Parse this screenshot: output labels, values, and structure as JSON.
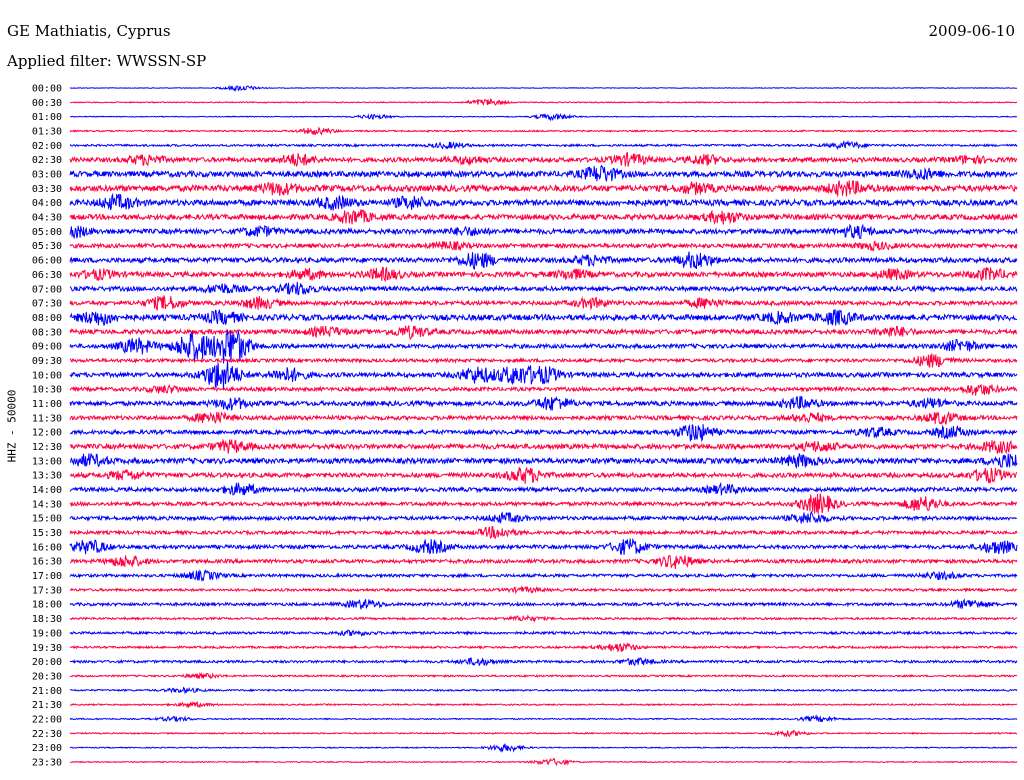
{
  "header": {
    "station": "GE Mathiatis, Cyprus",
    "filter": "Applied filter: WWSSN-SP",
    "date": "2009-06-10"
  },
  "chart_data": {
    "type": "line",
    "ylabel": "HHZ - 50000",
    "colors": {
      "odd": "#0000ff",
      "even": "#ff0040"
    },
    "trace_labels": [
      "00:00",
      "00:30",
      "01:00",
      "01:30",
      "02:00",
      "02:30",
      "03:00",
      "03:30",
      "04:00",
      "04:30",
      "05:00",
      "05:30",
      "06:00",
      "06:30",
      "07:00",
      "07:30",
      "08:00",
      "08:30",
      "09:00",
      "09:30",
      "10:00",
      "10:30",
      "11:00",
      "11:30",
      "12:00",
      "12:30",
      "13:00",
      "13:30",
      "14:00",
      "14:30",
      "15:00",
      "15:30",
      "16:00",
      "16:30",
      "17:00",
      "17:30",
      "18:00",
      "18:30",
      "19:00",
      "19:30",
      "20:00",
      "20:30",
      "21:00",
      "21:30",
      "22:00",
      "22:30",
      "23:00",
      "23:30"
    ],
    "noise_level": [
      0.3,
      0.5,
      0.4,
      0.7,
      1.0,
      2.2,
      2.8,
      3.0,
      2.8,
      2.6,
      2.4,
      2.0,
      2.4,
      2.4,
      2.2,
      2.0,
      2.8,
      2.2,
      2.0,
      1.6,
      2.2,
      1.8,
      2.2,
      2.0,
      2.0,
      2.4,
      2.6,
      2.2,
      2.0,
      1.8,
      1.8,
      1.6,
      1.8,
      1.8,
      1.4,
      1.2,
      1.4,
      1.0,
      1.2,
      1.0,
      1.2,
      0.8,
      0.8,
      0.7,
      0.6,
      0.6,
      0.5,
      0.5
    ],
    "events": [
      [
        [
          0.18,
          2.5
        ]
      ],
      [
        [
          0.44,
          3.0
        ]
      ],
      [
        [
          0.32,
          2.0
        ],
        [
          0.51,
          3.0
        ]
      ],
      [
        [
          0.26,
          3.0
        ]
      ],
      [
        [
          0.4,
          2.5
        ],
        [
          0.82,
          3.0
        ]
      ],
      [
        [
          0.24,
          5.0
        ],
        [
          0.08,
          4.0
        ],
        [
          0.42,
          3.0
        ],
        [
          0.59,
          5.0
        ],
        [
          0.67,
          4.0
        ],
        [
          0.95,
          3.0
        ]
      ],
      [
        [
          0.56,
          7.0
        ],
        [
          0.9,
          4.0
        ]
      ],
      [
        [
          0.22,
          5.0
        ],
        [
          0.66,
          4.0
        ],
        [
          0.82,
          6.0
        ]
      ],
      [
        [
          0.05,
          6.0
        ],
        [
          0.28,
          5.0
        ],
        [
          0.36,
          5.0
        ]
      ],
      [
        [
          0.3,
          6.0
        ],
        [
          0.69,
          5.0
        ]
      ],
      [
        [
          0.0,
          6.0
        ],
        [
          0.2,
          4.0
        ],
        [
          0.42,
          3.0
        ],
        [
          0.83,
          5.0
        ]
      ],
      [
        [
          0.4,
          3.0
        ],
        [
          0.85,
          3.0
        ]
      ],
      [
        [
          0.43,
          7.0
        ],
        [
          0.55,
          4.0
        ],
        [
          0.66,
          7.0
        ]
      ],
      [
        [
          0.03,
          4.0
        ],
        [
          0.25,
          4.0
        ],
        [
          0.33,
          5.0
        ],
        [
          0.53,
          4.0
        ],
        [
          0.87,
          4.0
        ],
        [
          0.97,
          5.0
        ]
      ],
      [
        [
          0.16,
          4.0
        ],
        [
          0.24,
          5.0
        ]
      ],
      [
        [
          0.1,
          6.0
        ],
        [
          0.2,
          5.0
        ],
        [
          0.55,
          4.0
        ],
        [
          0.67,
          4.0
        ]
      ],
      [
        [
          0.03,
          6.0
        ],
        [
          0.16,
          5.0
        ],
        [
          0.81,
          6.0
        ],
        [
          0.75,
          4.0
        ]
      ],
      [
        [
          0.27,
          4.0
        ],
        [
          0.36,
          5.0
        ],
        [
          0.87,
          4.0
        ]
      ],
      [
        [
          0.07,
          7.0
        ],
        [
          0.13,
          14.0
        ],
        [
          0.17,
          18.0
        ],
        [
          0.94,
          5.0
        ]
      ],
      [
        [
          0.91,
          6.0
        ]
      ],
      [
        [
          0.16,
          14.0
        ],
        [
          0.23,
          6.0
        ],
        [
          0.43,
          7.0
        ],
        [
          0.47,
          8.0
        ],
        [
          0.5,
          7.0
        ]
      ],
      [
        [
          0.1,
          3.0
        ],
        [
          0.96,
          5.0
        ]
      ],
      [
        [
          0.17,
          5.0
        ],
        [
          0.51,
          6.0
        ],
        [
          0.77,
          5.0
        ],
        [
          0.91,
          4.0
        ]
      ],
      [
        [
          0.15,
          5.0
        ],
        [
          0.78,
          4.0
        ],
        [
          0.92,
          5.0
        ]
      ],
      [
        [
          0.66,
          8.0
        ],
        [
          0.85,
          4.0
        ],
        [
          0.93,
          5.0
        ]
      ],
      [
        [
          0.17,
          5.0
        ],
        [
          0.79,
          4.0
        ],
        [
          0.98,
          5.0
        ]
      ],
      [
        [
          0.02,
          5.0
        ],
        [
          0.77,
          5.0
        ],
        [
          0.99,
          6.0
        ]
      ],
      [
        [
          0.06,
          4.0
        ],
        [
          0.48,
          7.0
        ],
        [
          0.97,
          6.0
        ]
      ],
      [
        [
          0.18,
          5.0
        ],
        [
          0.69,
          4.0
        ]
      ],
      [
        [
          0.79,
          9.0
        ],
        [
          0.9,
          7.0
        ]
      ],
      [
        [
          0.46,
          4.0
        ],
        [
          0.78,
          5.0
        ]
      ],
      [
        [
          0.45,
          5.0
        ]
      ],
      [
        [
          0.02,
          6.0
        ],
        [
          0.38,
          6.0
        ],
        [
          0.59,
          7.0
        ],
        [
          0.98,
          6.0
        ]
      ],
      [
        [
          0.06,
          5.0
        ],
        [
          0.64,
          6.0
        ]
      ],
      [
        [
          0.14,
          4.0
        ],
        [
          0.92,
          3.0
        ]
      ],
      [
        [
          0.48,
          2.0
        ]
      ],
      [
        [
          0.31,
          4.0
        ],
        [
          0.95,
          4.0
        ]
      ],
      [
        [
          0.48,
          2.0
        ]
      ],
      [
        [
          0.3,
          2.0
        ]
      ],
      [
        [
          0.58,
          4.0
        ]
      ],
      [
        [
          0.43,
          3.0
        ],
        [
          0.6,
          3.0
        ]
      ],
      [
        [
          0.14,
          2.0
        ]
      ],
      [
        [
          0.12,
          2.0
        ]
      ],
      [
        [
          0.13,
          2.0
        ]
      ],
      [
        [
          0.11,
          2.0
        ],
        [
          0.79,
          2.5
        ]
      ],
      [
        [
          0.76,
          2.5
        ]
      ],
      [
        [
          0.46,
          3.5
        ]
      ],
      [
        [
          0.51,
          3.0
        ]
      ]
    ]
  }
}
